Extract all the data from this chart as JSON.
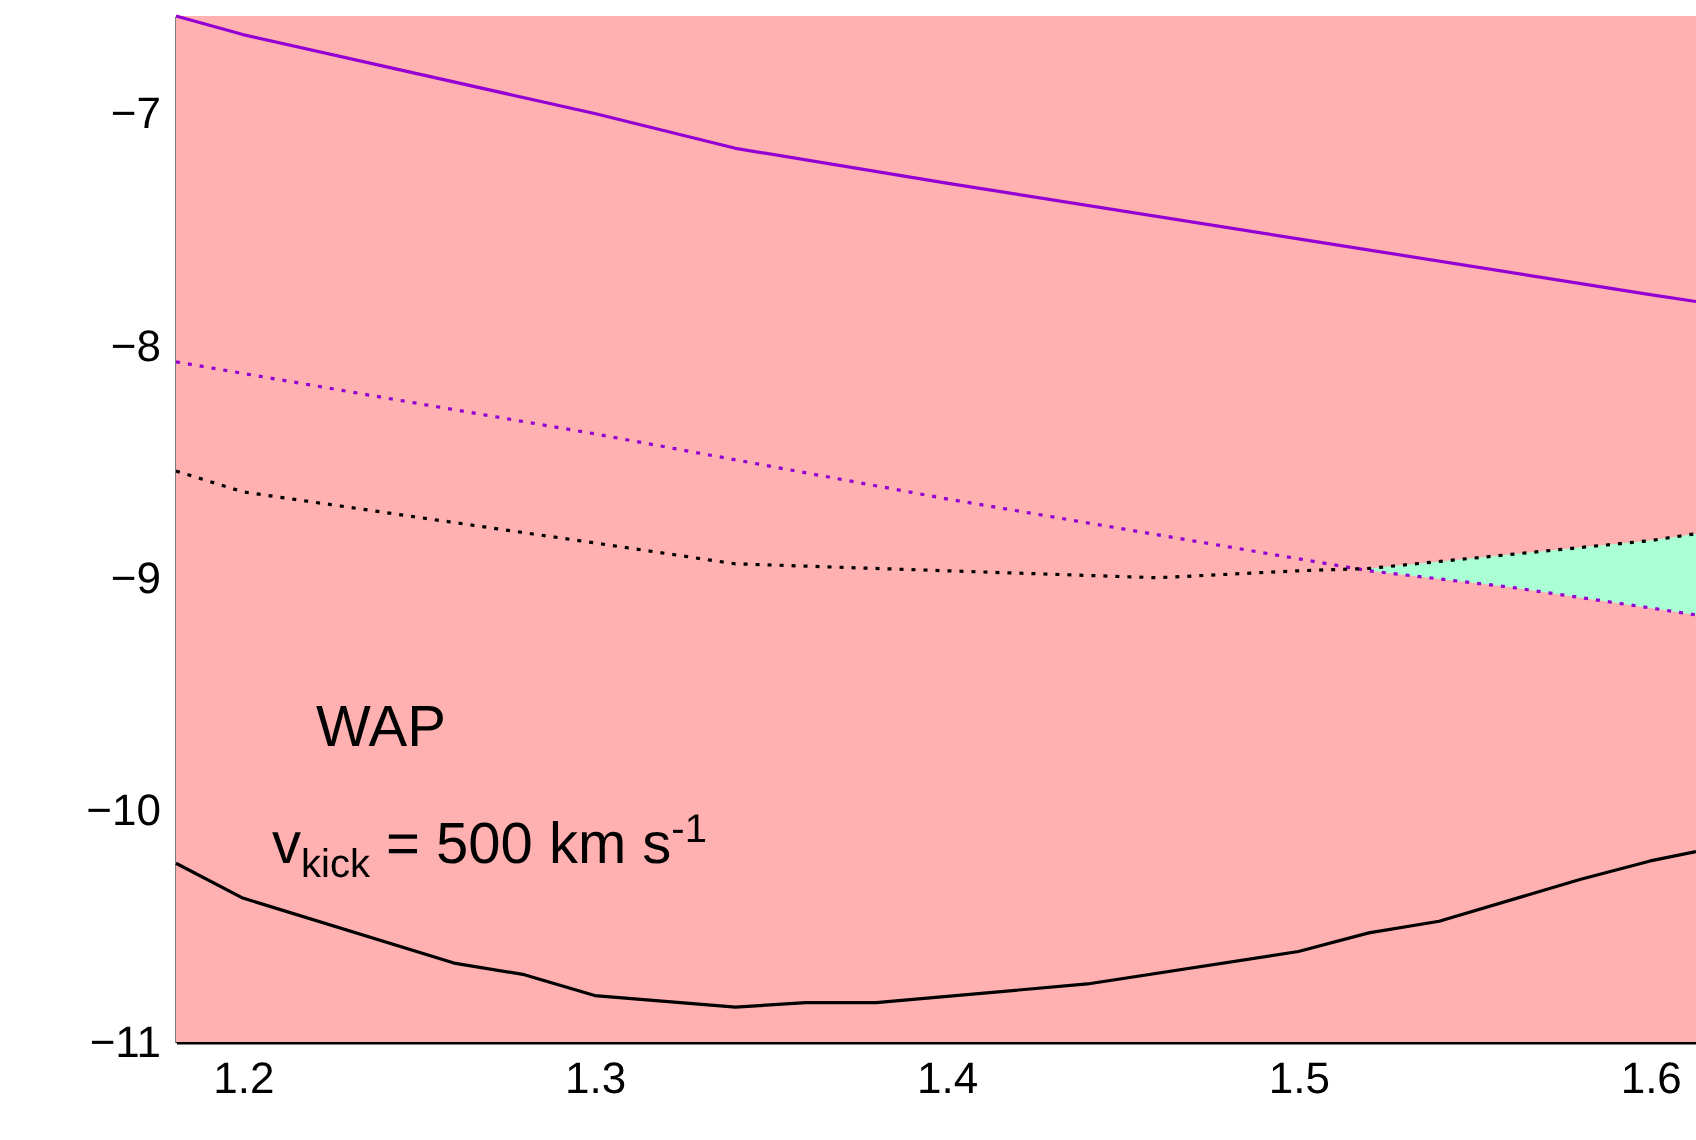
{
  "chart_data": {
    "type": "line",
    "xlim": [
      1.181,
      1.613
    ],
    "ylim": [
      -11,
      -6.58
    ],
    "xticks": [
      1.2,
      1.3,
      1.4,
      1.5,
      1.6
    ],
    "yticks": [
      -11,
      -10,
      -9,
      -8,
      -7
    ],
    "marker": "none",
    "bands": [
      {
        "axis": "y",
        "from": -11,
        "to": -6.58,
        "color": "#ffb0b0"
      }
    ],
    "annotations": [
      "WAP",
      "v$_{kick}$ = 500 km s$^{-1}$"
    ],
    "series": [
      {
        "color": "#9400d3",
        "line_style": "solid",
        "x": [
          1.181,
          1.2,
          1.3,
          1.34,
          1.4,
          1.5,
          1.6,
          1.613
        ],
        "values": [
          -6.58,
          -6.66,
          -7.0,
          -7.15,
          -7.3,
          -7.54,
          -7.78,
          -7.81
        ]
      },
      {
        "color": "#9400d3",
        "line_style": "dotted",
        "x": [
          1.181,
          1.3,
          1.4,
          1.52,
          1.56,
          1.6,
          1.613
        ],
        "values": [
          -8.07,
          -8.38,
          -8.66,
          -8.97,
          -9.04,
          -9.13,
          -9.16
        ],
        "lower": [
          null,
          null,
          null,
          -8.97,
          -9.04,
          -9.13,
          -9.16
        ],
        "upper": [
          null,
          null,
          null,
          -8.96,
          -8.9,
          -8.84,
          -8.81
        ]
      },
      {
        "color": "#000000",
        "line_style": "dotted",
        "x": [
          1.181,
          1.2,
          1.3,
          1.34,
          1.4,
          1.46,
          1.5,
          1.52,
          1.6,
          1.613
        ],
        "values": [
          -8.54,
          -8.63,
          -8.85,
          -8.94,
          -8.97,
          -9.0,
          -8.97,
          -8.96,
          -8.84,
          -8.81
        ]
      },
      {
        "color": "#000000",
        "line_style": "solid",
        "x": [
          1.181,
          1.2,
          1.26,
          1.28,
          1.3,
          1.34,
          1.36,
          1.38,
          1.44,
          1.5,
          1.52,
          1.54,
          1.58,
          1.6,
          1.613
        ],
        "values": [
          -10.23,
          -10.38,
          -10.66,
          -10.71,
          -10.8,
          -10.85,
          -10.83,
          -10.83,
          -10.75,
          -10.61,
          -10.53,
          -10.48,
          -10.3,
          -10.22,
          -10.18
        ]
      }
    ]
  }
}
